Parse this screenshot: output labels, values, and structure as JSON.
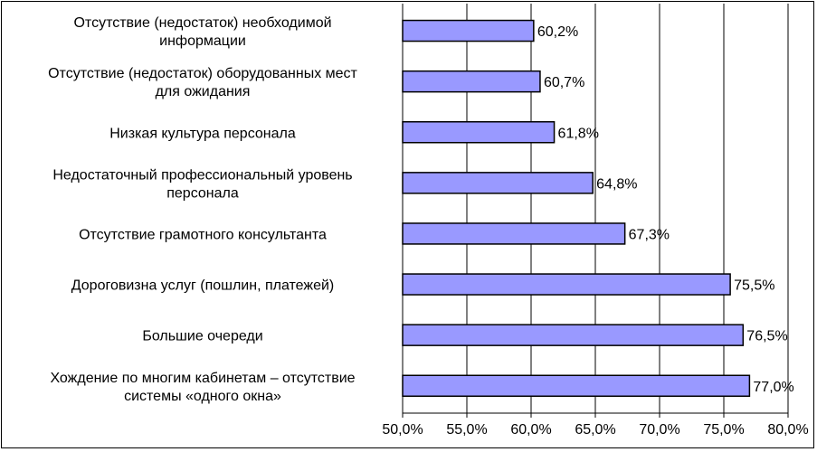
{
  "chart_data": {
    "type": "bar",
    "orientation": "horizontal",
    "categories": [
      [
        "Отсутствие (недостаток) необходимой",
        "информации"
      ],
      [
        "Отсутствие (недостаток) оборудованных мест",
        "для ожидания"
      ],
      [
        "Низкая культура персонала"
      ],
      [
        "Недостаточный профессиональный уровень",
        "персонала"
      ],
      [
        "Отсутствие грамотного консультанта"
      ],
      [
        "Дороговизна услуг (пошлин, платежей)"
      ],
      [
        "Большие очереди"
      ],
      [
        "Хождение по многим кабинетам – отсутствие",
        "системы «одного окна»"
      ]
    ],
    "values": [
      60.2,
      60.7,
      61.8,
      64.8,
      67.3,
      75.5,
      76.5,
      77.0
    ],
    "data_labels": [
      "60,2%",
      "60,7%",
      "61,8%",
      "64,8%",
      "67,3%",
      "75,5%",
      "76,5%",
      "77,0%"
    ],
    "xlim": [
      50,
      80
    ],
    "xticks": [
      50,
      55,
      60,
      65,
      70,
      75,
      80
    ],
    "xtick_labels": [
      "50,0%",
      "55,0%",
      "60,0%",
      "65,0%",
      "70,0%",
      "75,0%",
      "80,0%"
    ],
    "grid": true,
    "bar_color": "#9999ff",
    "bar_edge_color": "#000000"
  }
}
